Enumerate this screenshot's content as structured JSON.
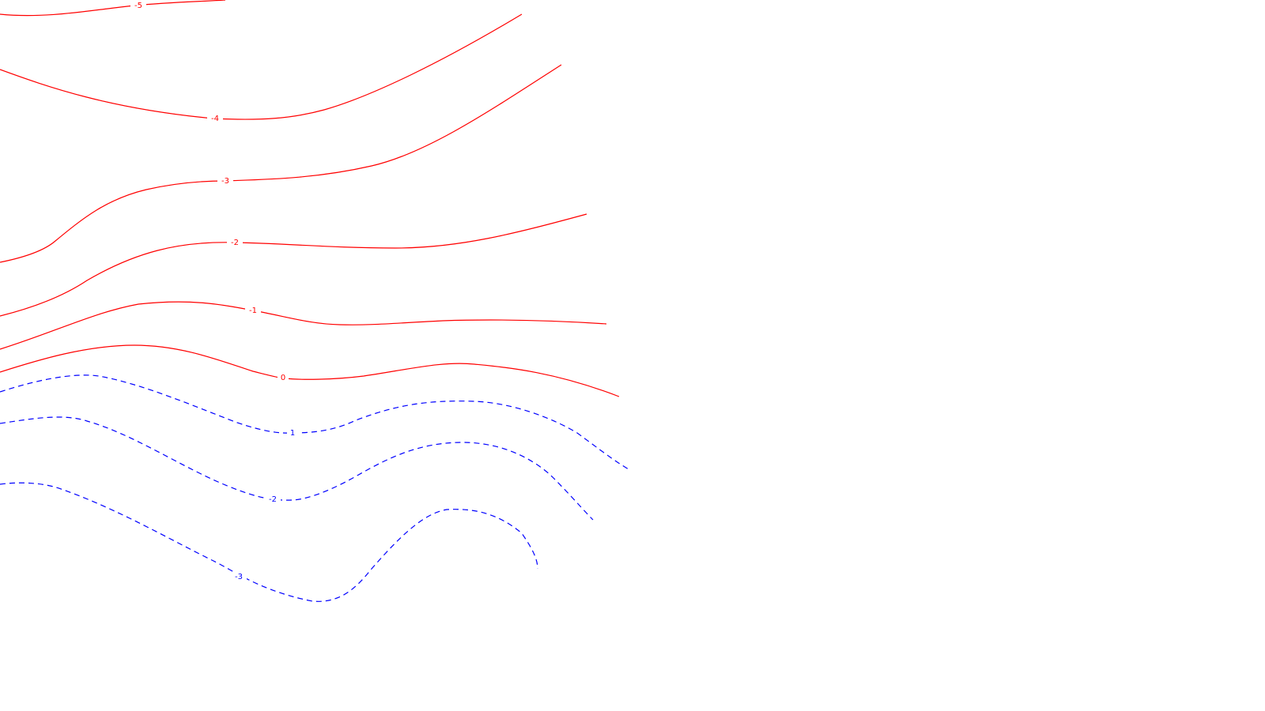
{
  "colors": {
    "background": "#ffffff",
    "positive": "#ff0000",
    "negative": "#0000ff"
  },
  "chart_data": {
    "type": "contour",
    "title": "",
    "xlabel": "",
    "ylabel": "",
    "grid": false,
    "levels": [
      {
        "label": "-5",
        "style": "solid",
        "series": "positive"
      },
      {
        "label": "-4",
        "style": "solid",
        "series": "positive"
      },
      {
        "label": "-3",
        "style": "solid",
        "series": "positive"
      },
      {
        "label": "-2",
        "style": "solid",
        "series": "positive"
      },
      {
        "label": "-1",
        "style": "solid",
        "series": "positive"
      },
      {
        "label": "0",
        "style": "solid",
        "series": "positive"
      },
      {
        "label": "1",
        "style": "dashed",
        "series": "negative"
      },
      {
        "label": "-2",
        "style": "dashed",
        "series": "negative"
      },
      {
        "label": "-3",
        "style": "dashed",
        "series": "negative"
      }
    ]
  }
}
